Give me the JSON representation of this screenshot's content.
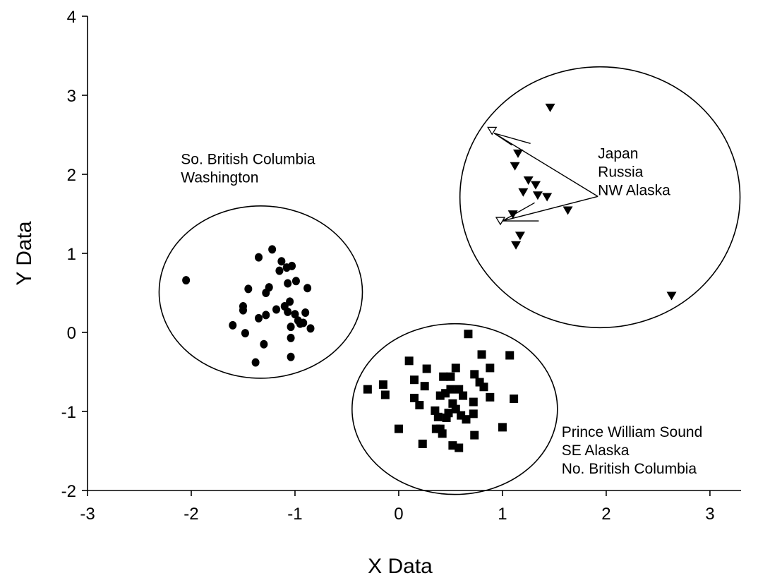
{
  "chart_data": {
    "type": "scatter",
    "title": "",
    "xlabel": "X Data",
    "ylabel": "Y Data",
    "xlim": [
      -3,
      3.3
    ],
    "ylim": [
      -2,
      4
    ],
    "xticks": [
      -3,
      -2,
      -1,
      0,
      1,
      2,
      3
    ],
    "yticks": [
      -2,
      -1,
      0,
      1,
      2,
      3,
      4
    ],
    "grid": false,
    "series": [
      {
        "marker": "circle",
        "color": "#000000",
        "points": [
          [
            -2.05,
            0.66
          ],
          [
            -1.6,
            0.09
          ],
          [
            -1.5,
            0.28
          ],
          [
            -1.5,
            0.33
          ],
          [
            -1.48,
            -0.01
          ],
          [
            -1.45,
            0.55
          ],
          [
            -1.38,
            -0.38
          ],
          [
            -1.35,
            0.95
          ],
          [
            -1.35,
            0.18
          ],
          [
            -1.3,
            -0.15
          ],
          [
            -1.28,
            0.5
          ],
          [
            -1.28,
            0.22
          ],
          [
            -1.25,
            0.57
          ],
          [
            -1.22,
            1.05
          ],
          [
            -1.18,
            0.29
          ],
          [
            -1.15,
            0.78
          ],
          [
            -1.13,
            0.9
          ],
          [
            -1.1,
            0.33
          ],
          [
            -1.08,
            0.82
          ],
          [
            -1.07,
            0.62
          ],
          [
            -1.07,
            0.26
          ],
          [
            -1.05,
            0.39
          ],
          [
            -1.04,
            0.07
          ],
          [
            -1.04,
            -0.07
          ],
          [
            -1.04,
            -0.31
          ],
          [
            -1.03,
            0.84
          ],
          [
            -1.0,
            0.23
          ],
          [
            -0.99,
            0.65
          ],
          [
            -0.97,
            0.15
          ],
          [
            -0.95,
            0.11
          ],
          [
            -0.92,
            0.12
          ],
          [
            -0.9,
            0.25
          ],
          [
            -0.88,
            0.56
          ],
          [
            -0.85,
            0.05
          ]
        ]
      },
      {
        "marker": "square",
        "color": "#000000",
        "points": [
          [
            -0.3,
            -0.72
          ],
          [
            -0.15,
            -0.66
          ],
          [
            -0.13,
            -0.79
          ],
          [
            0.0,
            -1.22
          ],
          [
            0.1,
            -0.36
          ],
          [
            0.15,
            -0.6
          ],
          [
            0.15,
            -0.83
          ],
          [
            0.2,
            -0.92
          ],
          [
            0.23,
            -1.41
          ],
          [
            0.25,
            -0.68
          ],
          [
            0.27,
            -0.46
          ],
          [
            0.35,
            -0.99
          ],
          [
            0.36,
            -1.22
          ],
          [
            0.38,
            -1.07
          ],
          [
            0.4,
            -0.8
          ],
          [
            0.4,
            -1.22
          ],
          [
            0.42,
            -1.28
          ],
          [
            0.43,
            -0.56
          ],
          [
            0.45,
            -0.77
          ],
          [
            0.46,
            -1.08
          ],
          [
            0.48,
            -1.02
          ],
          [
            0.5,
            -0.72
          ],
          [
            0.5,
            -0.56
          ],
          [
            0.52,
            -0.9
          ],
          [
            0.52,
            -1.43
          ],
          [
            0.55,
            -0.45
          ],
          [
            0.55,
            -0.97
          ],
          [
            0.58,
            -0.72
          ],
          [
            0.58,
            -1.46
          ],
          [
            0.6,
            -1.05
          ],
          [
            0.62,
            -0.8
          ],
          [
            0.65,
            -1.1
          ],
          [
            0.67,
            -0.02
          ],
          [
            0.72,
            -0.88
          ],
          [
            0.72,
            -1.03
          ],
          [
            0.73,
            -0.53
          ],
          [
            0.73,
            -1.3
          ],
          [
            0.78,
            -0.63
          ],
          [
            0.8,
            -0.28
          ],
          [
            0.82,
            -0.69
          ],
          [
            0.88,
            -0.45
          ],
          [
            0.88,
            -0.82
          ],
          [
            1.0,
            -1.2
          ],
          [
            1.07,
            -0.29
          ],
          [
            1.11,
            -0.84
          ]
        ]
      },
      {
        "marker": "triangle-down",
        "color": "#000000",
        "points": [
          [
            1.1,
            1.49
          ],
          [
            1.12,
            2.1
          ],
          [
            1.13,
            1.1
          ],
          [
            1.15,
            2.26
          ],
          [
            1.17,
            1.22
          ],
          [
            1.2,
            1.77
          ],
          [
            1.25,
            1.92
          ],
          [
            1.32,
            1.86
          ],
          [
            1.34,
            1.73
          ],
          [
            1.43,
            1.71
          ],
          [
            1.46,
            2.84
          ],
          [
            1.63,
            1.54
          ],
          [
            2.63,
            0.46
          ]
        ]
      },
      {
        "marker": "triangle-down-open",
        "color": "#000000",
        "points": [
          [
            0.9,
            2.55
          ],
          [
            0.98,
            1.41
          ]
        ]
      }
    ],
    "annotations": [
      {
        "lines": [
          "So. British Columbia",
          "Washington"
        ],
        "x": -2.1,
        "y": 2.13
      },
      {
        "lines": [
          "Japan",
          "Russia",
          "NW Alaska"
        ],
        "x": 1.92,
        "y": 2.2
      },
      {
        "lines": [
          "Prince William Sound",
          "SE Alaska",
          "No. British Columbia"
        ],
        "x": 1.57,
        "y": -1.32
      }
    ],
    "ellipses": [
      {
        "cx": -1.33,
        "cy": 0.51,
        "rx": 0.98,
        "ry": 1.09
      },
      {
        "cx": 0.54,
        "cy": -0.97,
        "rx": 0.99,
        "ry": 1.08
      },
      {
        "cx": 1.94,
        "cy": 1.71,
        "rx": 1.35,
        "ry": 1.65
      }
    ],
    "leader_lines": [
      [
        [
          0.92,
          2.52
        ],
        [
          1.92,
          1.72
        ]
      ],
      [
        [
          0.92,
          2.52
        ],
        [
          1.27,
          2.39
        ]
      ],
      [
        [
          0.92,
          2.52
        ],
        [
          1.09,
          2.37
        ]
      ],
      [
        [
          1.0,
          1.41
        ],
        [
          1.92,
          1.72
        ]
      ],
      [
        [
          1.0,
          1.41
        ],
        [
          1.35,
          1.41
        ]
      ],
      [
        [
          1.0,
          1.41
        ],
        [
          1.31,
          1.64
        ]
      ]
    ]
  }
}
